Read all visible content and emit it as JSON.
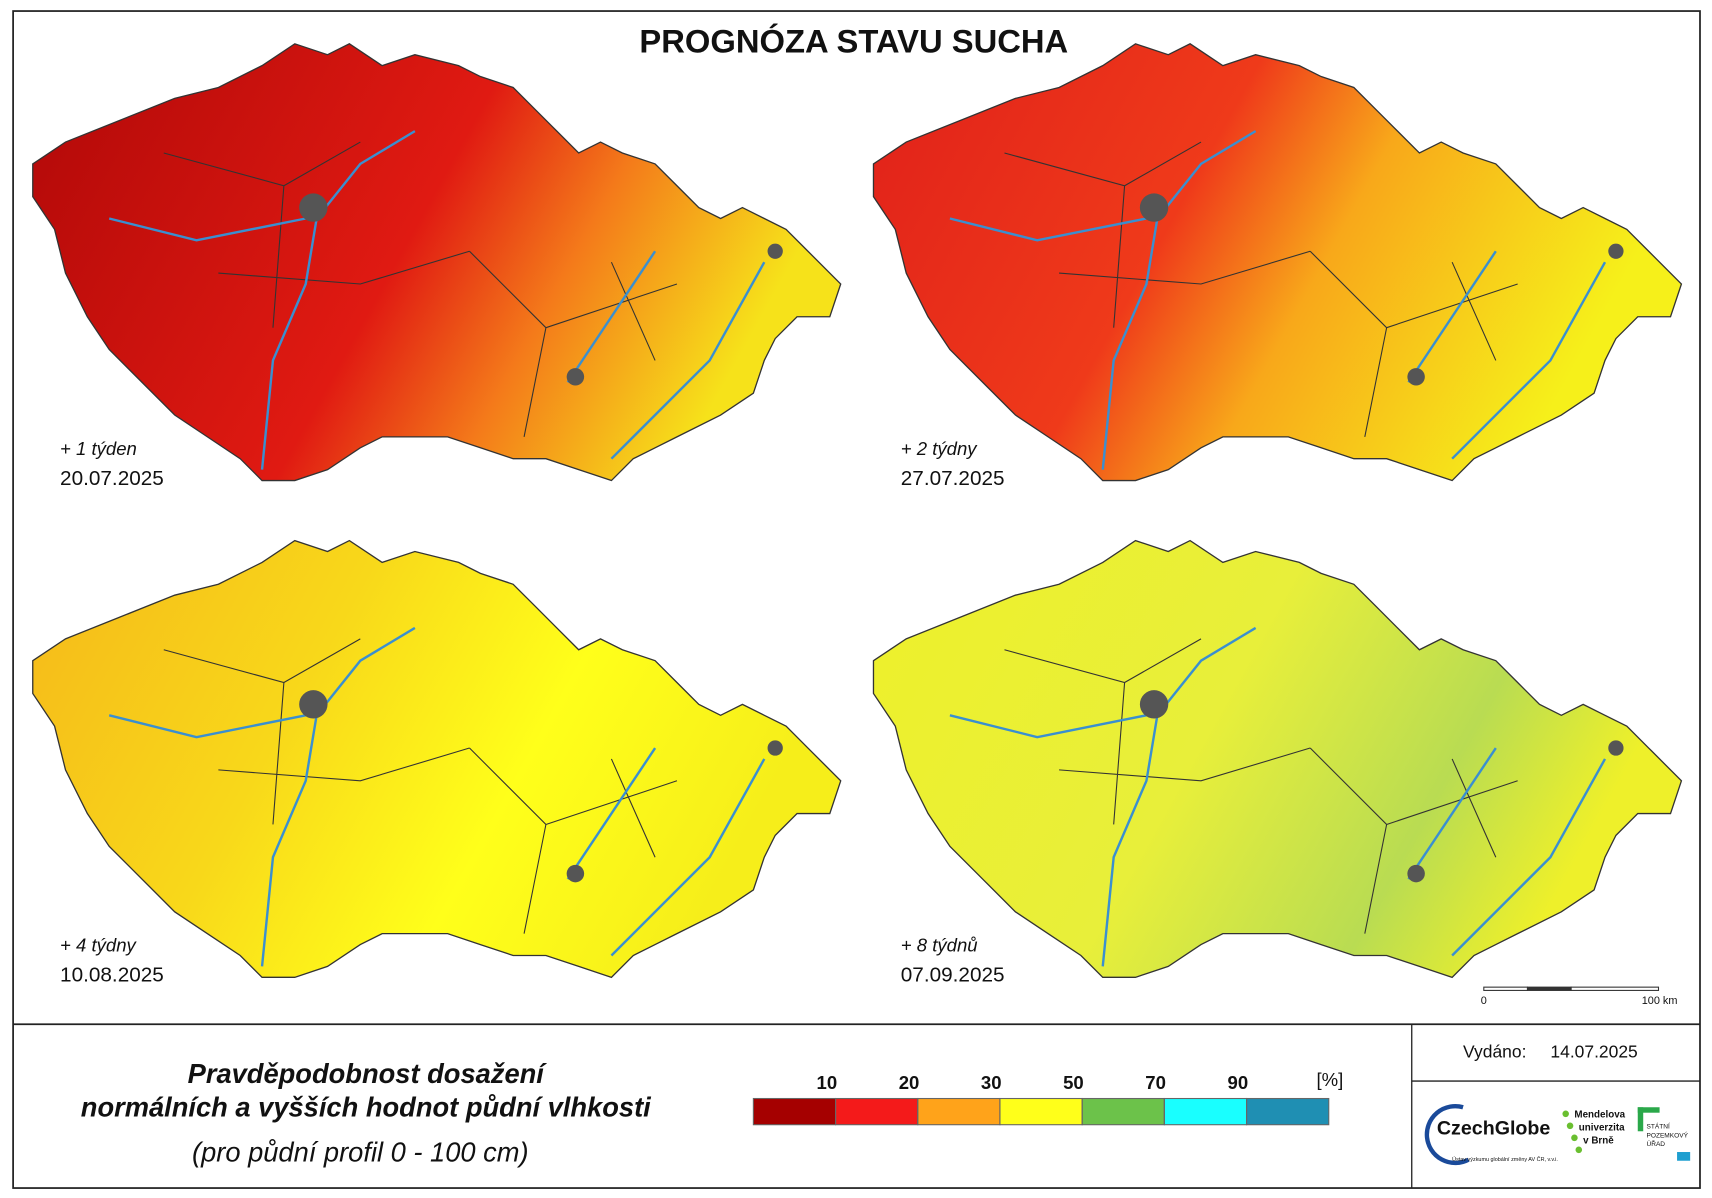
{
  "header": {
    "title": "PROGNÓZA STAVU SUCHA"
  },
  "maps": [
    {
      "week": "+ 1 týden",
      "date": "20.07.2025"
    },
    {
      "week": "+ 2 týdny",
      "date": "27.07.2025"
    },
    {
      "week": "+ 4 týdny",
      "date": "10.08.2025"
    },
    {
      "week": "+ 8 týdnů",
      "date": "07.09.2025"
    }
  ],
  "scale_bar": {
    "start": "0",
    "end": "100 km"
  },
  "legend": {
    "title_lines": [
      "Pravděpodobnost dosažení",
      "normálních a vyšších hodnot půdní vlhkosti"
    ],
    "subtitle": "(pro půdní profil 0 - 100 cm)",
    "unit": "[%]",
    "ticks": [
      10,
      20,
      30,
      50,
      70,
      90
    ],
    "colors": [
      "#a50000",
      "#f41a1a",
      "#ffa31a",
      "#ffff1a",
      "#6cc24a",
      "#19ffff",
      "#1f8fb3"
    ]
  },
  "issued": {
    "label": "Vydáno:",
    "date": "14.07.2025"
  },
  "logos": {
    "czechglobe": "CzechGlobe",
    "czechglobe_sub": "Ústav výzkumu globální změny AV ČR, v.v.i.",
    "mendel": [
      "Mendelova",
      "univerzita",
      "v Brně"
    ],
    "spu": [
      "STÁTNÍ",
      "POZEMKOVÝ",
      "ÚŘAD"
    ]
  }
}
